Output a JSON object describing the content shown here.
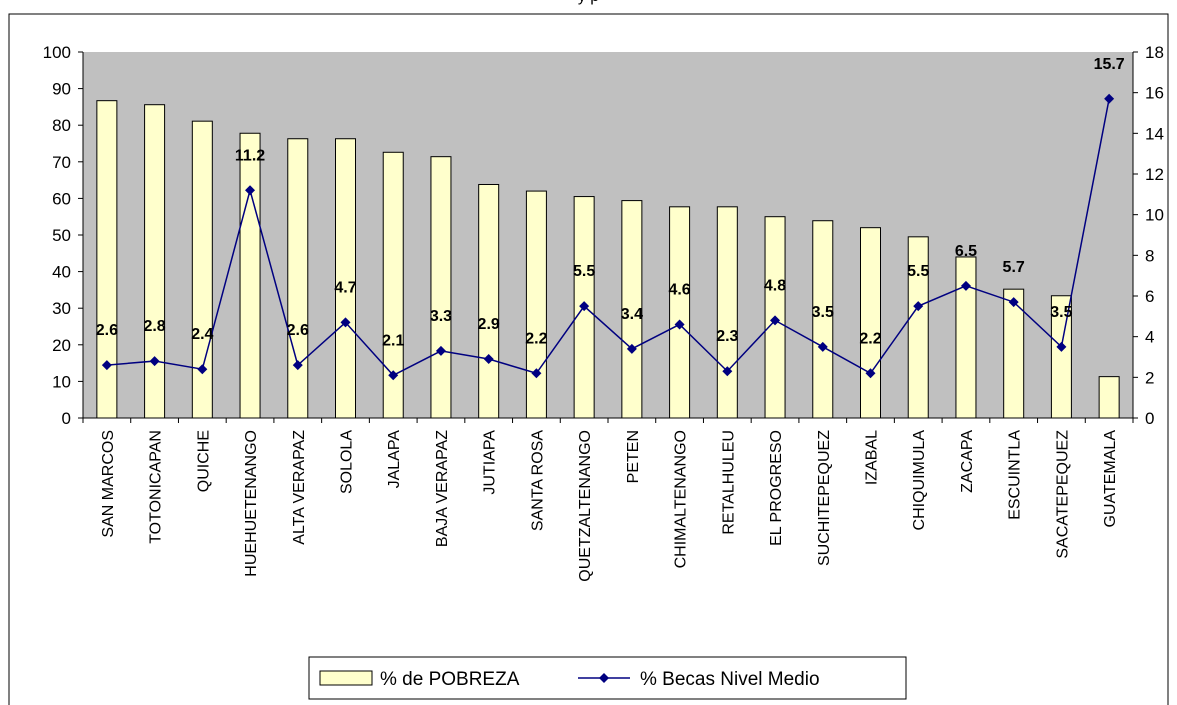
{
  "page": {
    "top_caption": "y p"
  },
  "colors": {
    "plot_bg": "#c0c0c0",
    "bar_fill": "#ffffcc",
    "bar_stroke": "#000000",
    "line": "#000080",
    "frame": "#000000"
  },
  "chart_data": {
    "type": "bar",
    "categories": [
      "SAN MARCOS",
      "TOTONICAPAN",
      "QUICHE",
      "HUEHUETENANGO",
      "ALTA VERAPAZ",
      "SOLOLA",
      "JALAPA",
      "BAJA VERAPAZ",
      "JUTIAPA",
      "SANTA ROSA",
      "QUETZALTENANGO",
      "PETEN",
      "CHIMALTENANGO",
      "RETALHULEU",
      "EL PROGRESO",
      "SUCHITEPEQUEZ",
      "IZABAL",
      "CHIQUIMULA",
      "ZACAPA",
      "ESCUINTLA",
      "SACATEPEQUEZ",
      "GUATEMALA"
    ],
    "series": [
      {
        "name": "% de POBREZA",
        "type": "bar",
        "axis": "left",
        "values": [
          86.7,
          85.6,
          81.1,
          77.8,
          76.3,
          76.3,
          72.6,
          71.4,
          63.8,
          62.0,
          60.5,
          59.4,
          57.7,
          57.7,
          55.0,
          53.9,
          52.0,
          49.5,
          44.0,
          35.2,
          33.4,
          11.3
        ]
      },
      {
        "name": "% Becas Nivel Medio",
        "type": "line",
        "axis": "right",
        "values": [
          2.6,
          2.8,
          2.4,
          11.2,
          2.6,
          4.7,
          2.1,
          3.3,
          2.9,
          2.2,
          5.5,
          3.4,
          4.6,
          2.3,
          4.8,
          3.5,
          2.2,
          5.5,
          6.5,
          5.7,
          3.5,
          15.7
        ],
        "labels": [
          "2.6",
          "2.8",
          "2.4",
          "11.2",
          "2.6",
          "4.7",
          "2.1",
          "3.3",
          "2.9",
          "2.2",
          "5.5",
          "3.4",
          "4.6",
          "2.3",
          "4.8",
          "3.5",
          "2.2",
          "5.5",
          "6.5",
          "5.7",
          "3.5",
          "15.7"
        ]
      }
    ],
    "y_left": {
      "ylim": [
        0,
        100
      ],
      "ticks": [
        "0",
        "10",
        "20",
        "30",
        "40",
        "50",
        "60",
        "70",
        "80",
        "90",
        "100"
      ]
    },
    "y_right": {
      "ylim": [
        0,
        18
      ],
      "ticks": [
        "0",
        "2",
        "4",
        "6",
        "8",
        "10",
        "12",
        "14",
        "16",
        "18"
      ]
    },
    "grid": false,
    "legend_placement": "bottom-center"
  }
}
